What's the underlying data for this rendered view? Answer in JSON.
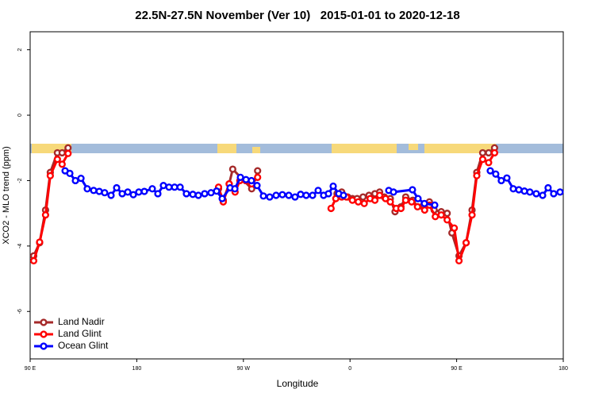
{
  "chart_data": {
    "type": "line",
    "title": "22.5N-27.5N November (Ver 10)   2015-01-01 to 2020-12-18",
    "x_label": "Longitude",
    "y_label": "XCO2 - MLO trend (ppm)",
    "xlim": [
      90,
      540
    ],
    "ylim": [
      -7.45,
      2.55
    ],
    "xticks": [
      {
        "value": 90,
        "label": "90 E"
      },
      {
        "value": 180,
        "label": "180"
      },
      {
        "value": 270,
        "label": "90 W"
      },
      {
        "value": 360,
        "label": "0"
      },
      {
        "value": 450,
        "label": "90 E"
      },
      {
        "value": 540,
        "label": "180"
      }
    ],
    "yticks": [
      -6,
      -4,
      -2,
      0,
      2
    ],
    "legend": "bottom-left",
    "series": [
      {
        "name": "Land Nadir",
        "color": "#a52a2a",
        "x": [
          93,
          98,
          103,
          107,
          113,
          117,
          122,
          180,
          249,
          253,
          258,
          261,
          277,
          282,
          313,
          349,
          353,
          358,
          362,
          366,
          371,
          376,
          381,
          385,
          389,
          394,
          398,
          403,
          407,
          413,
          417,
          422,
          427,
          431,
          437,
          442,
          446,
          452,
          458,
          463,
          467,
          472,
          477,
          482
        ],
        "values": [
          -4.3,
          -3.9,
          -2.9,
          -1.75,
          -1.15,
          -1.15,
          -1.0,
          null,
          -2.25,
          -2.6,
          -2.1,
          -1.65,
          -2.25,
          -1.7,
          null,
          -2.4,
          -2.35,
          -2.5,
          -2.55,
          -2.55,
          -2.5,
          -2.45,
          -2.4,
          -2.35,
          -2.5,
          -2.55,
          -2.95,
          -2.8,
          -2.5,
          -2.6,
          -2.8,
          -2.75,
          -2.65,
          -2.9,
          -2.95,
          -3.0,
          -3.6,
          -4.3,
          -3.9,
          -2.9,
          -1.75,
          -1.15,
          -1.15,
          -1.0
        ]
      },
      {
        "name": "Land Glint",
        "color": "#ff0000",
        "x": [
          93,
          98,
          103,
          107,
          113,
          117,
          122,
          180,
          249,
          253,
          258,
          263,
          267,
          272,
          277,
          282,
          313,
          344,
          348,
          353,
          357,
          362,
          367,
          372,
          377,
          381,
          385,
          390,
          394,
          399,
          403,
          407,
          412,
          417,
          423,
          427,
          432,
          437,
          442,
          448,
          452,
          458,
          463,
          467,
          472,
          477,
          482
        ],
        "values": [
          -4.45,
          -3.88,
          -3.05,
          -1.85,
          -1.35,
          -1.5,
          -1.17,
          null,
          -2.2,
          -2.65,
          -2.1,
          -2.35,
          -2.0,
          -2.0,
          -2.1,
          -1.9,
          null,
          -2.85,
          -2.55,
          -2.5,
          -2.5,
          -2.6,
          -2.65,
          -2.7,
          -2.55,
          -2.6,
          -2.45,
          -2.55,
          -2.65,
          -2.85,
          -2.85,
          -2.6,
          -2.65,
          -2.8,
          -2.9,
          -2.75,
          -3.1,
          -3.05,
          -3.2,
          -3.45,
          -4.45,
          -3.9,
          -3.05,
          -1.85,
          -1.35,
          -1.45,
          -1.15
        ]
      },
      {
        "name": "Ocean Glint",
        "color": "#0000ff",
        "x": [
          119.5,
          123.5,
          128.2,
          132.9,
          138.2,
          143.6,
          148.3,
          152.9,
          158.3,
          163,
          167.7,
          172.4,
          177.1,
          181.7,
          186.4,
          193.1,
          197.8,
          202.5,
          207.2,
          211.9,
          216.6,
          221.9,
          227.3,
          232,
          237.3,
          242.7,
          247.4,
          252.1,
          258.8,
          262.8,
          267.5,
          272.2,
          276.8,
          281.5,
          286.9,
          292.2,
          297.6,
          302.9,
          308.3,
          313.6,
          318.3,
          323,
          328.4,
          333.1,
          337.7,
          341.8,
          345.8,
          350.5,
          354.5,
          370,
          392.7,
          396.7,
          412.7,
          417.4,
          422.8,
          431.5,
          455,
          478.4,
          483,
          487.7,
          492.4,
          497.8,
          502.5,
          507.2,
          511.8,
          517.2,
          522.6,
          527.2,
          531.9,
          537.3
        ],
        "values": [
          -1.7,
          -1.78,
          -2.0,
          -1.93,
          -2.25,
          -2.3,
          -2.33,
          -2.37,
          -2.45,
          -2.22,
          -2.4,
          -2.35,
          -2.43,
          -2.35,
          -2.33,
          -2.25,
          -2.4,
          -2.15,
          -2.2,
          -2.2,
          -2.2,
          -2.4,
          -2.42,
          -2.45,
          -2.4,
          -2.37,
          -2.32,
          -2.55,
          -2.22,
          -2.25,
          -1.9,
          -1.97,
          -2.0,
          -2.15,
          -2.47,
          -2.5,
          -2.45,
          -2.43,
          -2.45,
          -2.5,
          -2.42,
          -2.45,
          -2.45,
          -2.3,
          -2.45,
          -2.4,
          -2.17,
          -2.4,
          -2.45,
          null,
          -2.3,
          -2.35,
          -2.28,
          -2.55,
          -2.7,
          -2.75,
          null,
          -1.7,
          -1.8,
          -2.0,
          -1.92,
          -2.25,
          -2.28,
          -2.32,
          -2.35,
          -2.4,
          -2.45,
          -2.22,
          -2.4,
          -2.35
        ]
      }
    ]
  }
}
